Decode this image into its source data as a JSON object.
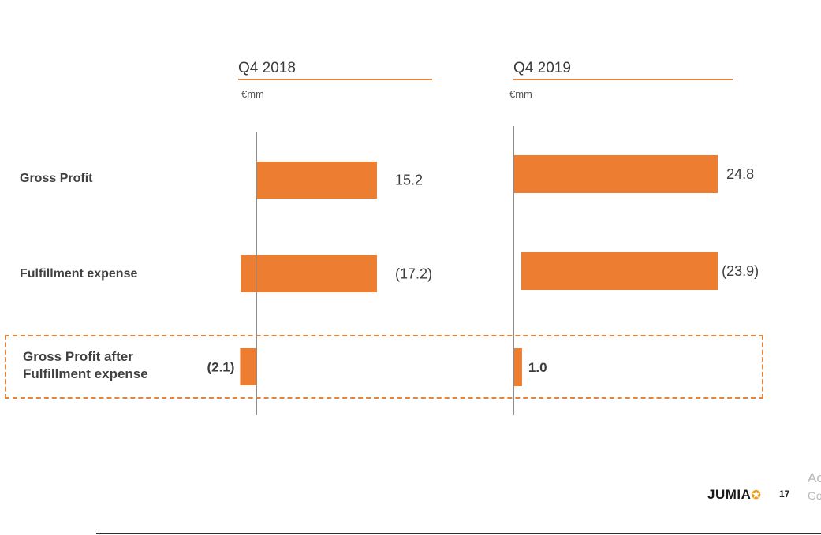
{
  "chart_data": [
    {
      "type": "bar",
      "title": "Q4 2018",
      "unit": "€mm",
      "categories": [
        "Gross Profit",
        "Fulfillment expense",
        "Gross Profit after Fulfillment expense"
      ],
      "values": [
        15.2,
        -17.2,
        -2.1
      ],
      "value_labels": [
        "15.2",
        "(17.2)",
        "(2.1)"
      ]
    },
    {
      "type": "bar",
      "title": "Q4 2019",
      "unit": "€mm",
      "categories": [
        "Gross Profit",
        "Fulfillment expense",
        "Gross Profit after Fulfillment expense"
      ],
      "values": [
        24.8,
        -23.9,
        1.0
      ],
      "value_labels": [
        "24.8",
        "(23.9)",
        "1.0"
      ]
    }
  ],
  "rows": {
    "gross_profit": "Gross Profit",
    "fulfillment": "Fulfillment expense",
    "after_line1": "Gross Profit after",
    "after_line2": "Fulfillment expense"
  },
  "colors": {
    "bar": "#ed7d31",
    "accent": "#e8833a",
    "axis": "#8c8c8c"
  },
  "footer": {
    "logo": "JUMIA",
    "logo_icon": "star-icon",
    "page_number": "17"
  },
  "watermark": {
    "line1": "Ac",
    "line2": "Go"
  }
}
